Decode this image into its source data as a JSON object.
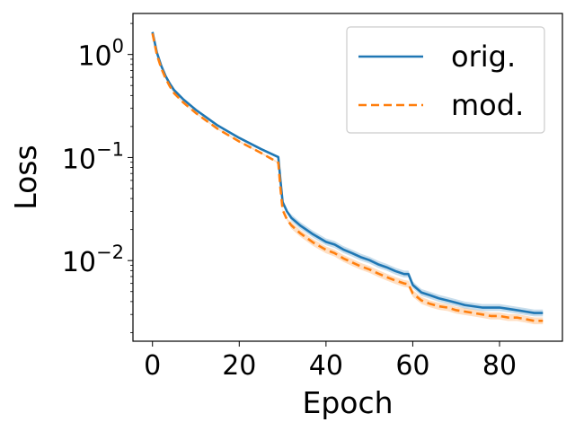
{
  "chart_data": {
    "type": "line",
    "title": "",
    "xlabel": "Epoch",
    "ylabel": "Loss",
    "xlim": [
      -4.5,
      94.5
    ],
    "ylim": [
      0.00165,
      2.5
    ],
    "yscale": "log",
    "x_ticks": [
      0,
      20,
      40,
      60,
      80
    ],
    "y_ticks": [
      {
        "value": 1,
        "base": "10",
        "exp": "0"
      },
      {
        "value": 0.1,
        "base": "10",
        "exp": "−1"
      },
      {
        "value": 0.01,
        "base": "10",
        "exp": "−2"
      }
    ],
    "grid": false,
    "legend": "top-right",
    "series": [
      {
        "name": "orig.",
        "color": "#1f77b4",
        "style": "solid",
        "band": true,
        "x": [
          0,
          1,
          2,
          3,
          4,
          5,
          7,
          10,
          15,
          20,
          25,
          29,
          29.5,
          30,
          31,
          32,
          34,
          37,
          40,
          42,
          44,
          46,
          48,
          50,
          52,
          54,
          56,
          58,
          59,
          60,
          62,
          64,
          66,
          68,
          70,
          72,
          74,
          76,
          78,
          80,
          82,
          84,
          86,
          88,
          90
        ],
        "y": [
          1.65,
          1.05,
          0.78,
          0.62,
          0.52,
          0.45,
          0.37,
          0.29,
          0.205,
          0.155,
          0.121,
          0.101,
          0.06,
          0.037,
          0.03,
          0.026,
          0.022,
          0.018,
          0.0152,
          0.0143,
          0.0128,
          0.0118,
          0.0108,
          0.0101,
          0.0092,
          0.0086,
          0.0079,
          0.0074,
          0.0074,
          0.0058,
          0.0049,
          0.0046,
          0.0043,
          0.0041,
          0.0039,
          0.0037,
          0.0036,
          0.0035,
          0.0035,
          0.0035,
          0.0034,
          0.0033,
          0.0032,
          0.0031,
          0.0031
        ]
      },
      {
        "name": "mod.",
        "color": "#ff7f0e",
        "style": "dashed",
        "band": true,
        "x": [
          0,
          1,
          2,
          3,
          4,
          5,
          7,
          10,
          15,
          20,
          25,
          29,
          29.5,
          30,
          31,
          32,
          34,
          37,
          40,
          42,
          44,
          46,
          48,
          50,
          52,
          54,
          56,
          58,
          59,
          60,
          62,
          64,
          66,
          68,
          70,
          72,
          74,
          76,
          78,
          80,
          82,
          84,
          86,
          88,
          90
        ],
        "y": [
          1.6,
          1.0,
          0.74,
          0.59,
          0.49,
          0.42,
          0.345,
          0.27,
          0.19,
          0.143,
          0.111,
          0.089,
          0.05,
          0.031,
          0.025,
          0.022,
          0.0185,
          0.015,
          0.0127,
          0.0118,
          0.0105,
          0.0096,
          0.0088,
          0.0082,
          0.0075,
          0.0069,
          0.0064,
          0.006,
          0.0059,
          0.0048,
          0.0041,
          0.0038,
          0.0036,
          0.0035,
          0.0033,
          0.0032,
          0.0031,
          0.003,
          0.0029,
          0.0029,
          0.0028,
          0.0028,
          0.0027,
          0.0026,
          0.0026
        ]
      }
    ]
  }
}
